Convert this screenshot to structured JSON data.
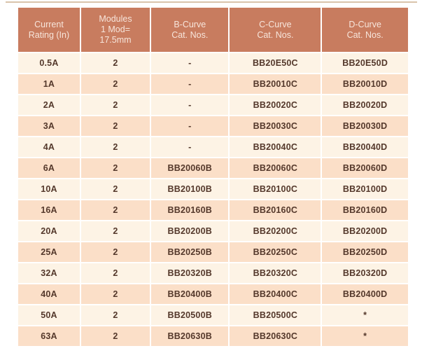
{
  "table": {
    "headers": [
      "Current\nRating (In)",
      "Modules\n1 Mod=\n17.5mm",
      "B-Curve\nCat. Nos.",
      "C-Curve\nCat. Nos.",
      "D-Curve\nCat. Nos."
    ],
    "rows": [
      {
        "rating": "0.5A",
        "modules": "2",
        "b_curve": "-",
        "c_curve": "BB20E50C",
        "d_curve": "BB20E50D"
      },
      {
        "rating": "1A",
        "modules": "2",
        "b_curve": "-",
        "c_curve": "BB20010C",
        "d_curve": "BB20010D"
      },
      {
        "rating": "2A",
        "modules": "2",
        "b_curve": "-",
        "c_curve": "BB20020C",
        "d_curve": "BB20020D"
      },
      {
        "rating": "3A",
        "modules": "2",
        "b_curve": "-",
        "c_curve": "BB20030C",
        "d_curve": "BB20030D"
      },
      {
        "rating": "4A",
        "modules": "2",
        "b_curve": "-",
        "c_curve": "BB20040C",
        "d_curve": "BB20040D"
      },
      {
        "rating": "6A",
        "modules": "2",
        "b_curve": "BB20060B",
        "c_curve": "BB20060C",
        "d_curve": "BB20060D"
      },
      {
        "rating": "10A",
        "modules": "2",
        "b_curve": "BB20100B",
        "c_curve": "BB20100C",
        "d_curve": "BB20100D"
      },
      {
        "rating": "16A",
        "modules": "2",
        "b_curve": "BB20160B",
        "c_curve": "BB20160C",
        "d_curve": "BB20160D"
      },
      {
        "rating": "20A",
        "modules": "2",
        "b_curve": "BB20200B",
        "c_curve": "BB20200C",
        "d_curve": "BB20200D"
      },
      {
        "rating": "25A",
        "modules": "2",
        "b_curve": "BB20250B",
        "c_curve": "BB20250C",
        "d_curve": "BB20250D"
      },
      {
        "rating": "32A",
        "modules": "2",
        "b_curve": "BB20320B",
        "c_curve": "BB20320C",
        "d_curve": "BB20320D"
      },
      {
        "rating": "40A",
        "modules": "2",
        "b_curve": "BB20400B",
        "c_curve": "BB20400C",
        "d_curve": "BB20400D"
      },
      {
        "rating": "50A",
        "modules": "2",
        "b_curve": "BB20500B",
        "c_curve": "BB20500C",
        "d_curve": "*"
      },
      {
        "rating": "63A",
        "modules": "2",
        "b_curve": "BB20630B",
        "c_curve": "BB20630C",
        "d_curve": "*"
      }
    ],
    "row_stripe": [
      "light",
      "dark"
    ],
    "colors": {
      "header_bg": "#c87c5f",
      "header_text": "#f7e5db",
      "row_light_bg": "#fdf3e5",
      "row_dark_bg": "#fbdfc8",
      "body_text": "#54382b",
      "top_rule": "#d9c3aa"
    }
  }
}
